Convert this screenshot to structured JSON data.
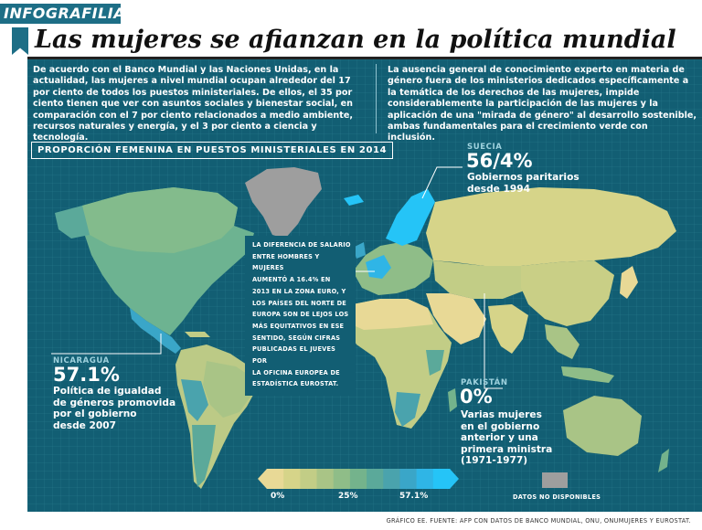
{
  "header": {
    "tag": "INFOGRAFILIA",
    "title": "Las mujeres se afianzan en la política mundial"
  },
  "intro": {
    "left": "De acuerdo con el Banco Mundial y las Naciones Unidas, en la actualidad, las mujeres a nivel mundial ocupan alrededor del 17 por ciento de todos los puestos ministeriales. De ellos, el 35 por ciento tienen que ver con asuntos sociales y bienestar social, en comparación con el 7 por ciento relacionados a medio ambiente, recursos naturales y energía, y el 3 por ciento a ciencia y tecnología.",
    "right": "La ausencia general de conocimiento experto en materia de género fuera de los ministerios dedicados específicamente a la temática de los derechos de las mujeres, impide considerablemente la participación de las mujeres y la aplicación de una \"mirada de género\" al desarrollo sostenible, ambas fundamentales para el crecimiento verde con inclusión."
  },
  "map": {
    "title": "PROPORCIÓN FEMENINA EN PUESTOS MINISTERIALES EN 2014"
  },
  "callouts": {
    "suecia": {
      "country": "SUECIA",
      "value": "56/4%",
      "lines": [
        "Gobiernos paritarios",
        "desde 1994"
      ]
    },
    "nicaragua": {
      "country": "NICARAGUA",
      "value": "57.1%",
      "lines": [
        "Política de igualdad",
        "de géneros promovida",
        "por el gobierno",
        "desde 2007"
      ]
    },
    "pakistan": {
      "country": "PAKISTÁN",
      "value": "0%",
      "lines": [
        "Varias mujeres",
        "en el gobierno",
        "anterior y una",
        "primera ministra",
        "(1971-1977)"
      ]
    }
  },
  "salary_note": {
    "lines": [
      "LA DIFERENCIA DE SALARIO",
      "ENTRE HOMBRES Y MUJERES",
      "AUMENTÓ A 16.4% EN",
      "2013 EN LA ZONA EURO, Y",
      "LOS PAÍSES DEL NORTE DE",
      "EUROPA SON DE LEJOS LOS",
      "MÁS EQUITATIVOS EN ESE",
      "SENTIDO, SEGÚN CIFRAS",
      "PUBLICADAS EL JUEVES POR",
      "LA OFICINA EUROPEA DE",
      "ESTADÍSTICA EUROSTAT."
    ]
  },
  "legend": {
    "min_label": "0%",
    "mid_label": "25%",
    "max_label": "57.1%",
    "nodata_label": "DATOS NO DISPONIBLES",
    "range": [
      0,
      57.1
    ],
    "colors": [
      "#e8d996",
      "#d6d489",
      "#c2cd86",
      "#a9c486",
      "#8fbd88",
      "#74b38c",
      "#5ba99a",
      "#4aa3ad",
      "#3aa6c8",
      "#2fb5e6",
      "#25c4f7"
    ]
  },
  "footer": {
    "source": "GRÁFICO EE. FUENTE: AFP CON DATOS DE BANCO MUNDIAL, ONU, ONUMUJERES Y EUROSTAT."
  }
}
